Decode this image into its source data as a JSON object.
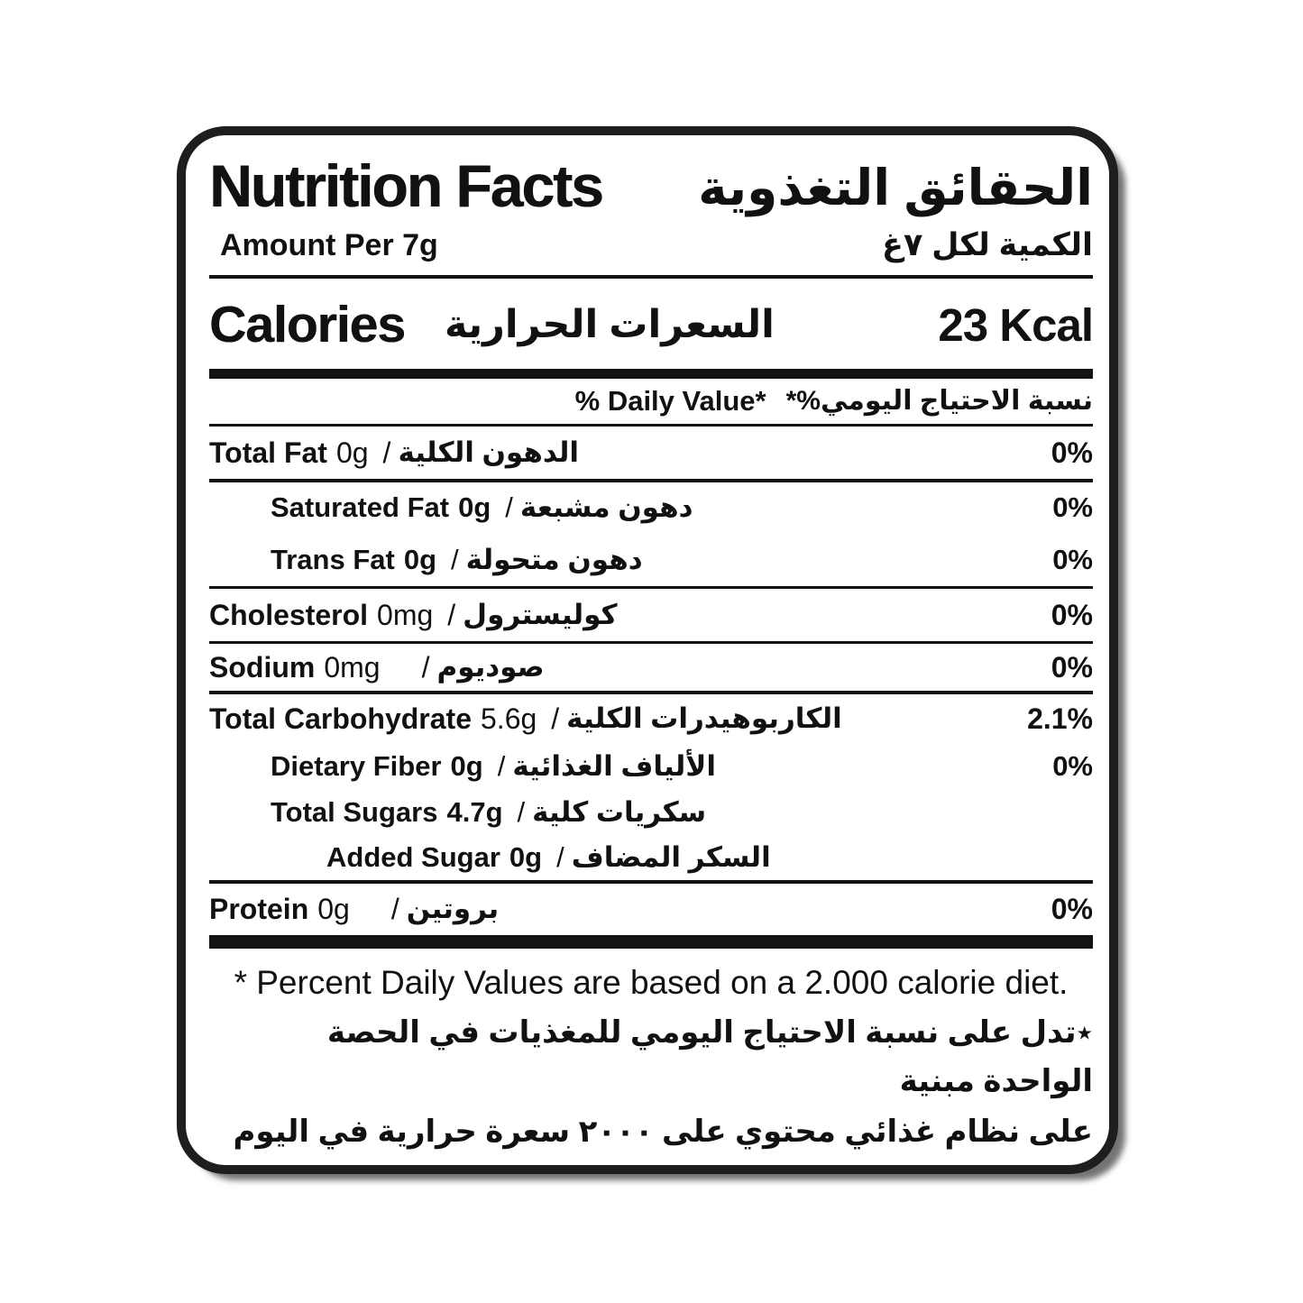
{
  "header": {
    "title_en": "Nutrition Facts",
    "title_ar": "الحقائق التغذوية",
    "amount_en": "Amount Per 7g",
    "amount_ar": "الكمية لكل ٧غ"
  },
  "calories": {
    "label_en": "Calories",
    "label_ar": "السعرات الحرارية",
    "value": "23 Kcal"
  },
  "daily_value_header": {
    "en": "% Daily Value*",
    "ar": "نسبة الاحتياج اليومي%*"
  },
  "separator": "/",
  "rows": [
    {
      "en": "Total Fat",
      "value": "0g",
      "ar": "الدهون الكلية",
      "pct": "0%"
    },
    {
      "en": "Saturated Fat",
      "value": "0g",
      "ar": "دهون مشبعة",
      "pct": "0%"
    },
    {
      "en": "Trans Fat",
      "value": "0g",
      "ar": "دهون متحولة",
      "pct": "0%"
    },
    {
      "en": "Cholesterol",
      "value": "0mg",
      "ar": "كوليسترول",
      "pct": "0%"
    },
    {
      "en": "Sodium",
      "value": "0mg",
      "ar": "صوديوم",
      "pct": "0%"
    },
    {
      "en": "Total Carbohydrate",
      "value": "5.6g",
      "ar": "الكاربوهيدرات الكلية",
      "pct": "2.1%"
    },
    {
      "en": "Dietary Fiber",
      "value": "0g",
      "ar": "الألياف الغذائية",
      "pct": "0%"
    },
    {
      "en": "Total Sugars",
      "value": "4.7g",
      "ar": "سكريات كلية",
      "pct": ""
    },
    {
      "en": "Added Sugar",
      "value": "0g",
      "ar": "السكر المضاف",
      "pct": ""
    },
    {
      "en": "Protein",
      "value": "0g",
      "ar": "بروتين",
      "pct": "0%"
    }
  ],
  "footer": {
    "en": "* Percent Daily Values are based on a 2.000 calorie diet.",
    "ar_line1": "٭تدل على نسبة الاحتياج اليومي للمغذيات في الحصة الواحدة مبنية",
    "ar_line2": "على نظام غذائي محتوي على ٢٠٠٠ سعرة حرارية في اليوم"
  },
  "colors": {
    "text": "#111111",
    "border": "#1e1e1e",
    "background": "#ffffff"
  }
}
